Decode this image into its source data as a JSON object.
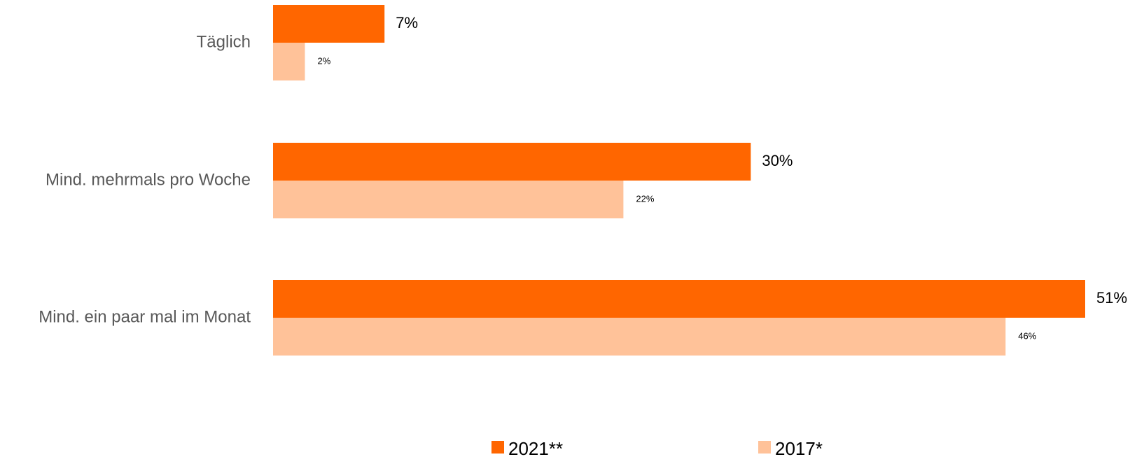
{
  "chart_data": {
    "type": "bar",
    "orientation": "horizontal",
    "categories": [
      "Täglich",
      "Mind. mehrmals pro Woche",
      "Mind. ein paar mal im Monat"
    ],
    "series": [
      {
        "name": "2021**",
        "values": [
          7,
          30,
          51
        ],
        "labels": [
          "7%",
          "30%",
          "51%"
        ],
        "color": "#FF6600"
      },
      {
        "name": "2017*",
        "values": [
          2,
          22,
          46
        ],
        "labels": [
          "2%",
          "22%",
          "46%"
        ],
        "color": "#FFC299"
      }
    ],
    "title": "",
    "xlabel": "",
    "ylabel": "",
    "xlim": [
      0,
      51
    ],
    "grid": false,
    "legend_position": "bottom"
  }
}
